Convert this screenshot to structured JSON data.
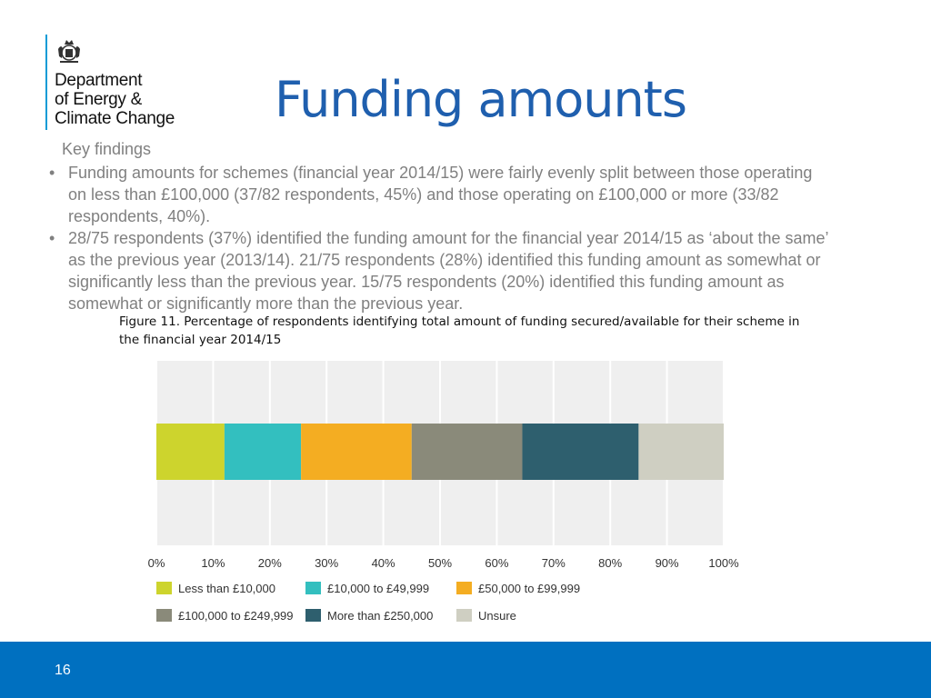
{
  "logo": {
    "lines": [
      "Department",
      "of Energy &",
      "Climate Change"
    ]
  },
  "title": "Funding amounts",
  "key_findings": {
    "heading": "Key findings",
    "bullets": [
      "Funding amounts for schemes (financial year 2014/15) were fairly evenly split between those operating on less than £100,000 (37/82 respondents, 45%) and those operating on £100,000 or more (33/82 respondents, 40%).",
      "28/75 respondents (37%) identified the funding amount for the financial year 2014/15 as ‘about the same’ as the previous year (2013/14). 21/75 respondents (28%) identified this funding amount as somewhat or significantly less than the previous year. 15/75 respondents (20%) identified this funding amount as somewhat or significantly more than the previous year."
    ]
  },
  "figure_caption": "Figure 11. Percentage of respondents identifying total amount of funding secured/available for their scheme in the financial year 2014/15",
  "chart_data": {
    "type": "bar",
    "orientation": "horizontal",
    "stacked": true,
    "title": "",
    "xlabel": "",
    "ylabel": "",
    "xlim": [
      0,
      100
    ],
    "ticks": [
      "0%",
      "10%",
      "20%",
      "30%",
      "40%",
      "50%",
      "60%",
      "70%",
      "80%",
      "90%",
      "100%"
    ],
    "grid": true,
    "series": [
      {
        "name": "Less than £10,000",
        "value": 12,
        "color": "#cdd42d"
      },
      {
        "name": "£10,000 to £49,999",
        "value": 13.5,
        "color": "#33bfbf"
      },
      {
        "name": "£50,000 to £99,999",
        "value": 19.5,
        "color": "#f4ad22"
      },
      {
        "name": "£100,000 to £249,999",
        "value": 19.5,
        "color": "#8a8a7a"
      },
      {
        "name": "More than £250,000",
        "value": 20.5,
        "color": "#2e5f6e"
      },
      {
        "name": "Unsure",
        "value": 15,
        "color": "#cfcfc2"
      }
    ]
  },
  "footer": {
    "page_number": "16"
  }
}
